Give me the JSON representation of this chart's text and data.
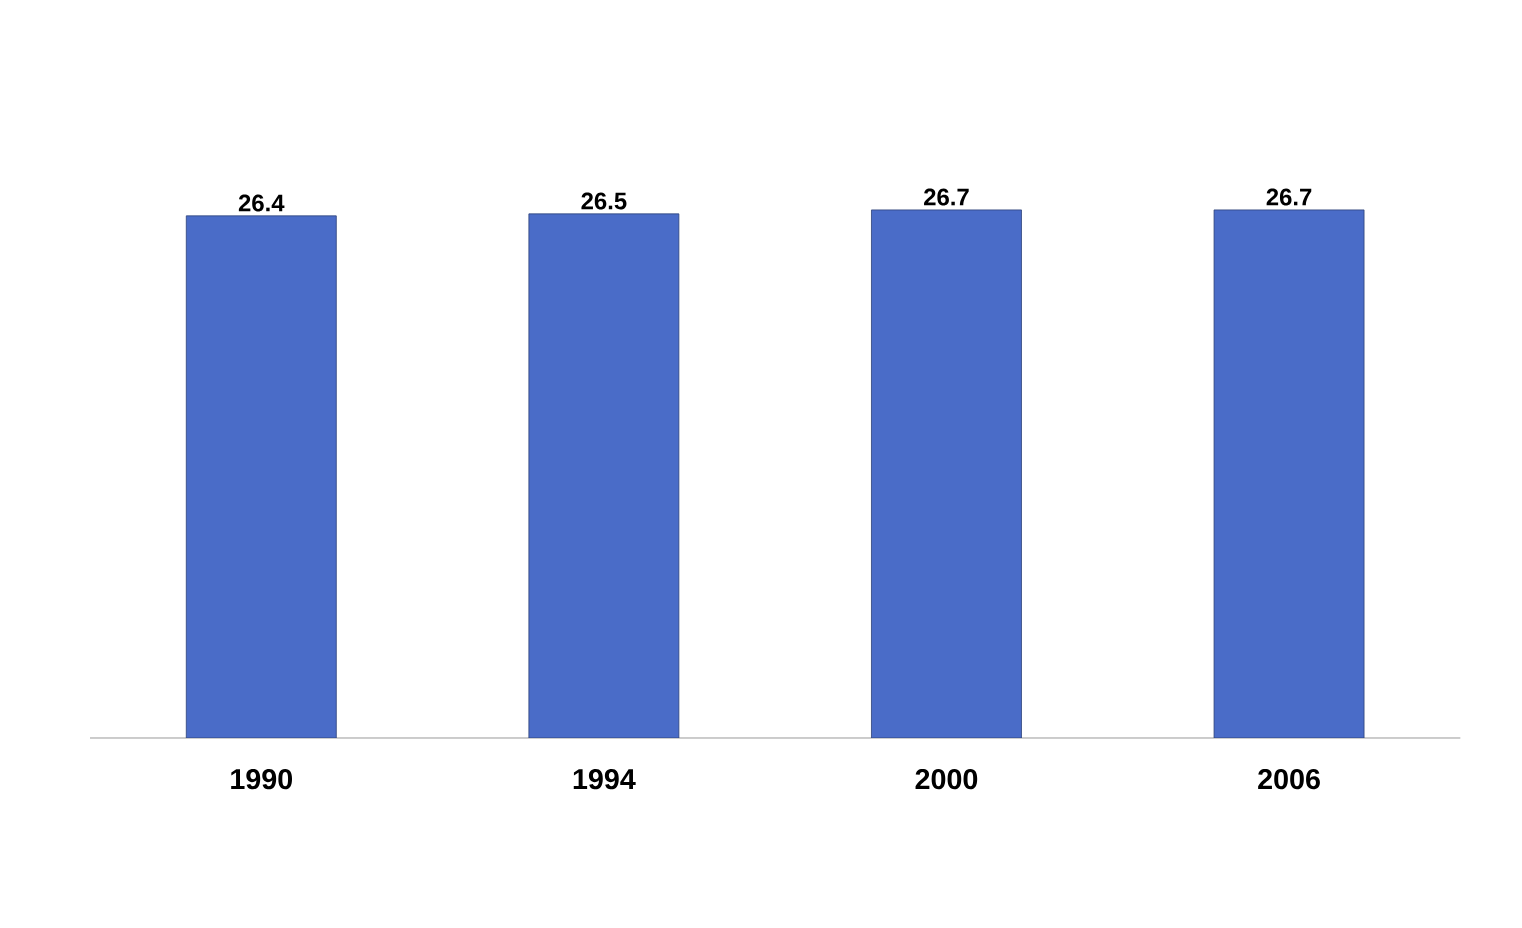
{
  "chart_data": {
    "type": "bar",
    "categories": [
      "1990",
      "1994",
      "2000",
      "2006"
    ],
    "values": [
      26.4,
      26.5,
      26.7,
      26.7
    ],
    "color": "#4a6cc8",
    "data_labels": true
  }
}
